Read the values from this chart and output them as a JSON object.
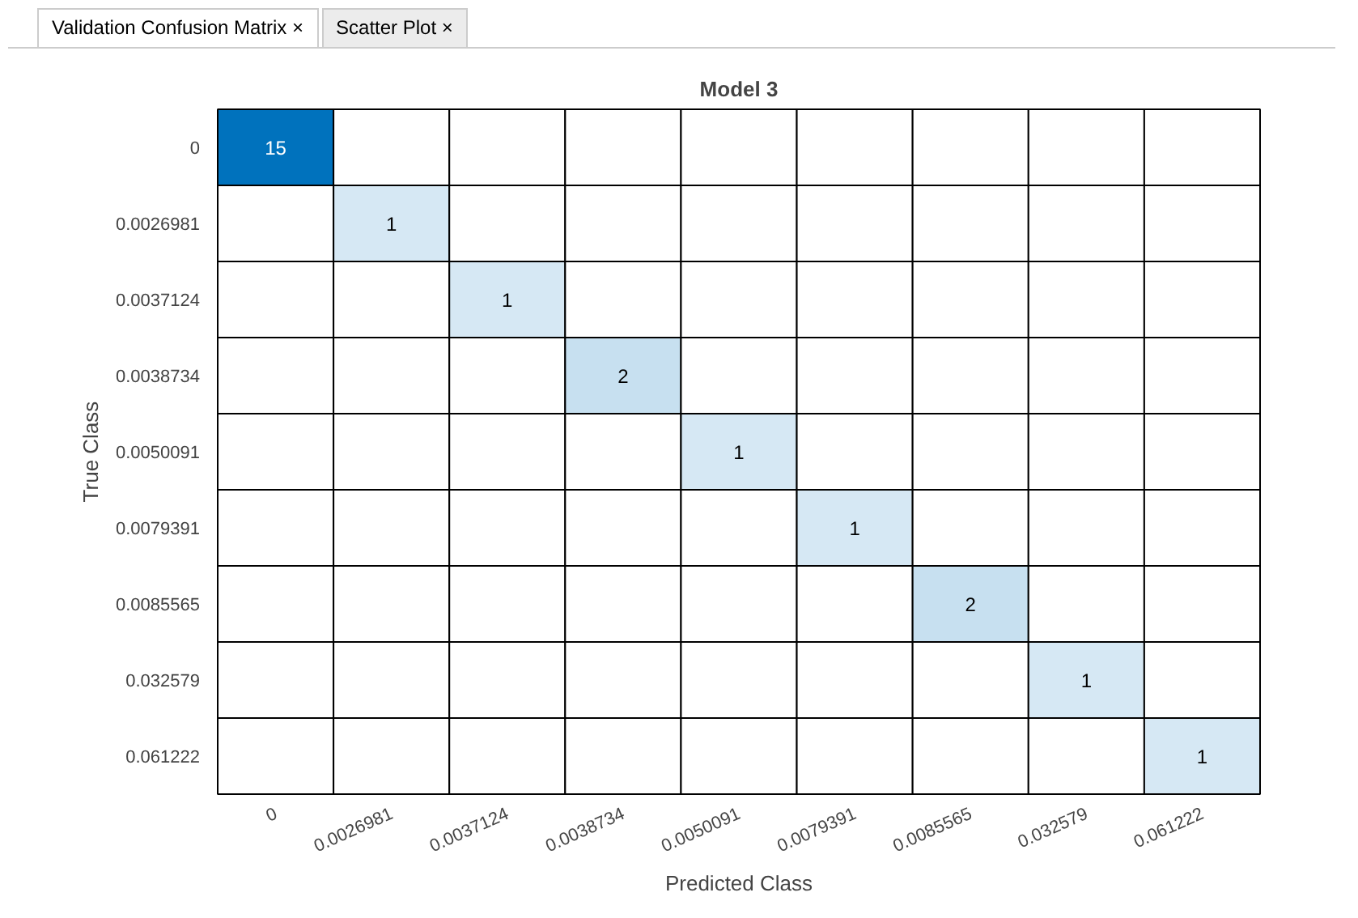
{
  "chart_data": {
    "type": "heatmap",
    "data_labels": true,
    "title": "Model 3",
    "xlabel": "Predicted Class",
    "ylabel": "True Class",
    "annotations": [
      "Validation Confusion Matrix ×",
      "Scatter Plot ×"
    ],
    "categories": [
      "0",
      "0.0026981",
      "0.0037124",
      "0.0038734",
      "0.0050091",
      "0.0079391",
      "0.0085565",
      "0.032579",
      "0.061222"
    ],
    "y_categories": [
      "0",
      "0.0026981",
      "0.0037124",
      "0.0038734",
      "0.0050091",
      "0.0079391",
      "0.0085565",
      "0.032579",
      "0.061222"
    ],
    "cells": [
      [
        15,
        null,
        null,
        null,
        null,
        null,
        null,
        null,
        null
      ],
      [
        null,
        1,
        null,
        null,
        null,
        null,
        null,
        null,
        null
      ],
      [
        null,
        null,
        1,
        null,
        null,
        null,
        null,
        null,
        null
      ],
      [
        null,
        null,
        null,
        2,
        null,
        null,
        null,
        null,
        null
      ],
      [
        null,
        null,
        null,
        null,
        1,
        null,
        null,
        null,
        null
      ],
      [
        null,
        null,
        null,
        null,
        null,
        1,
        null,
        null,
        null
      ],
      [
        null,
        null,
        null,
        null,
        null,
        null,
        2,
        null,
        null
      ],
      [
        null,
        null,
        null,
        null,
        null,
        null,
        null,
        1,
        null
      ],
      [
        null,
        null,
        null,
        null,
        null,
        null,
        null,
        null,
        1
      ]
    ]
  }
}
